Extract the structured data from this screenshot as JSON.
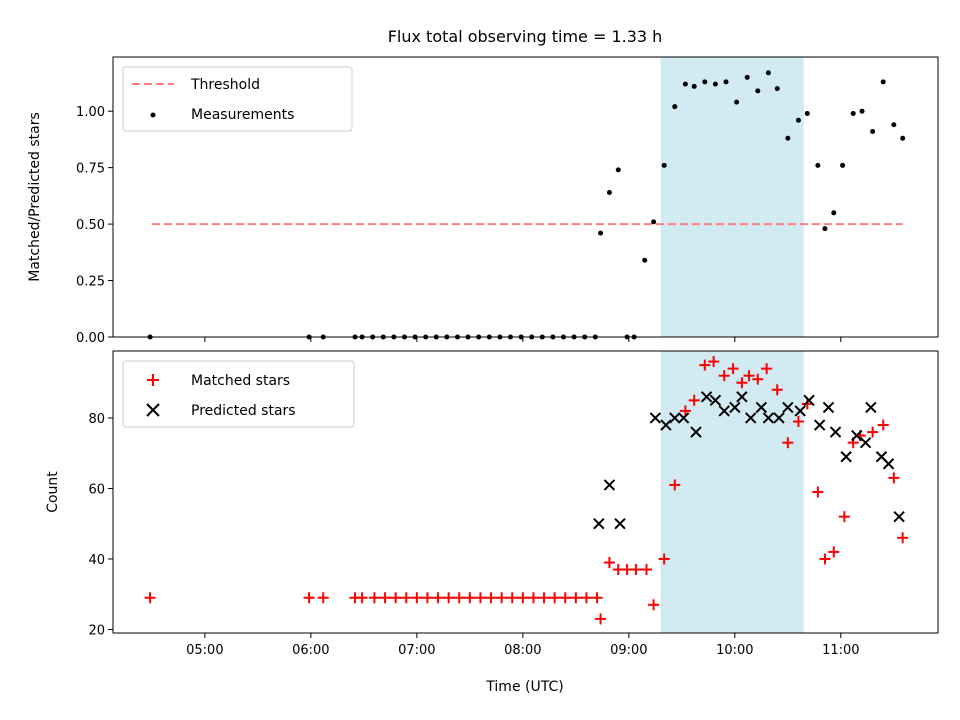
{
  "chart_data": [
    {
      "type": "scatter",
      "title": "Flux total observing time = 1.33 h",
      "xlabel": "",
      "ylabel": "Matched/Predicted stars",
      "ylim": [
        0,
        1.24
      ],
      "yticks": [
        "0.00",
        "0.25",
        "0.50",
        "0.75",
        "1.00"
      ],
      "legend": {
        "placement": "top-left",
        "entries": [
          "Threshold",
          "Measurements"
        ]
      },
      "threshold": {
        "name": "Threshold",
        "y": 0.5,
        "x_start": "04:30",
        "x_end": "11:35",
        "color": "#ff7f7f",
        "style": "dashed"
      },
      "highlight_span": {
        "x_start": "09:18",
        "x_end": "10:39",
        "color": "#add8e6"
      },
      "series": [
        {
          "name": "Measurements",
          "color": "#000000",
          "x": [
            "04:29",
            "05:59",
            "06:07",
            "06:25",
            "06:29",
            "06:35",
            "06:41",
            "06:47",
            "06:53",
            "06:59",
            "07:05",
            "07:11",
            "07:17",
            "07:23",
            "07:29",
            "07:35",
            "07:41",
            "07:47",
            "07:53",
            "07:59",
            "08:05",
            "08:11",
            "08:17",
            "08:23",
            "08:29",
            "08:35",
            "08:41",
            "08:44",
            "08:49",
            "08:54",
            "08:59",
            "09:03",
            "09:09",
            "09:14",
            "09:20",
            "09:26",
            "09:32",
            "09:37",
            "09:43",
            "09:49",
            "09:55",
            "10:01",
            "10:07",
            "10:13",
            "10:19",
            "10:24",
            "10:30",
            "10:36",
            "10:41",
            "10:47",
            "10:51",
            "10:56",
            "11:01",
            "11:07",
            "11:12",
            "11:18",
            "11:24",
            "11:30",
            "11:35"
          ],
          "y": [
            0.0,
            0.0,
            0.0,
            0.0,
            0.0,
            0.0,
            0.0,
            0.0,
            0.0,
            0.0,
            0.0,
            0.0,
            0.0,
            0.0,
            0.0,
            0.0,
            0.0,
            0.0,
            0.0,
            0.0,
            0.0,
            0.0,
            0.0,
            0.0,
            0.0,
            0.0,
            0.0,
            0.46,
            0.64,
            0.74,
            0.0,
            0.0,
            0.34,
            0.51,
            0.76,
            1.02,
            1.12,
            1.11,
            1.13,
            1.12,
            1.13,
            1.04,
            1.15,
            1.09,
            1.17,
            1.1,
            0.88,
            0.96,
            0.99,
            0.76,
            0.48,
            0.55,
            0.76,
            0.99,
            1.0,
            0.91,
            1.13,
            0.94,
            0.88
          ]
        }
      ]
    },
    {
      "type": "scatter",
      "title": "",
      "xlabel": "Time (UTC)",
      "ylabel": "Count",
      "ylim": [
        19,
        99
      ],
      "yticks": [
        "20",
        "40",
        "60",
        "80"
      ],
      "xticks": [
        "05:00",
        "06:00",
        "07:00",
        "08:00",
        "09:00",
        "10:00",
        "11:00"
      ],
      "xlim": [
        "04:08",
        "11:55"
      ],
      "legend": {
        "placement": "top-left",
        "entries": [
          "Matched stars",
          "Predicted stars"
        ]
      },
      "highlight_span": {
        "x_start": "09:18",
        "x_end": "10:39",
        "color": "#add8e6"
      },
      "series": [
        {
          "name": "Matched stars",
          "marker": "plus",
          "color": "#ff0000",
          "x": [
            "04:29",
            "05:59",
            "06:07",
            "06:25",
            "06:29",
            "06:36",
            "06:42",
            "06:48",
            "06:54",
            "07:00",
            "07:06",
            "07:12",
            "07:18",
            "07:24",
            "07:30",
            "07:36",
            "07:42",
            "07:48",
            "07:54",
            "08:00",
            "08:06",
            "08:12",
            "08:18",
            "08:24",
            "08:30",
            "08:36",
            "08:42",
            "08:44",
            "08:49",
            "08:54",
            "08:59",
            "09:04",
            "09:10",
            "09:14",
            "09:20",
            "09:26",
            "09:32",
            "09:37",
            "09:43",
            "09:48",
            "09:54",
            "09:59",
            "10:04",
            "10:08",
            "10:13",
            "10:18",
            "10:24",
            "10:30",
            "10:36",
            "10:41",
            "10:47",
            "10:51",
            "10:56",
            "11:02",
            "11:07",
            "11:11",
            "11:18",
            "11:24",
            "11:30",
            "11:35"
          ],
          "y": [
            29,
            29,
            29,
            29,
            29,
            29,
            29,
            29,
            29,
            29,
            29,
            29,
            29,
            29,
            29,
            29,
            29,
            29,
            29,
            29,
            29,
            29,
            29,
            29,
            29,
            29,
            29,
            23,
            39,
            37,
            37,
            37,
            37,
            27,
            40,
            61,
            82,
            85,
            95,
            96,
            92,
            94,
            90,
            92,
            91,
            94,
            88,
            73,
            79,
            84,
            59,
            40,
            42,
            52,
            73,
            75,
            76,
            78,
            63,
            46
          ]
        },
        {
          "name": "Predicted stars",
          "marker": "x",
          "color": "#000000",
          "x": [
            "08:43",
            "08:49",
            "08:55",
            "09:15",
            "09:21",
            "09:26",
            "09:31",
            "09:38",
            "09:44",
            "09:49",
            "09:54",
            "10:00",
            "10:04",
            "10:09",
            "10:15",
            "10:19",
            "10:25",
            "10:30",
            "10:37",
            "10:42",
            "10:48",
            "10:53",
            "10:57",
            "11:03",
            "11:09",
            "11:14",
            "11:17",
            "11:23",
            "11:27",
            "11:33"
          ],
          "y": [
            50,
            61,
            50,
            80,
            78,
            80,
            80,
            76,
            86,
            85,
            82,
            83,
            86,
            80,
            83,
            80,
            80,
            83,
            82,
            85,
            78,
            83,
            76,
            69,
            75,
            73,
            83,
            69,
            67,
            52
          ]
        }
      ]
    }
  ]
}
